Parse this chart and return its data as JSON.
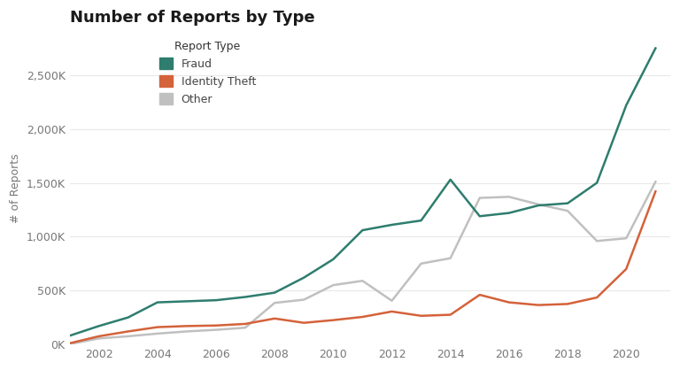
{
  "title": "Number of Reports by Type",
  "ylabel": "# of Reports",
  "years": [
    2001,
    2002,
    2003,
    2004,
    2005,
    2006,
    2007,
    2008,
    2009,
    2010,
    2011,
    2012,
    2013,
    2014,
    2015,
    2016,
    2017,
    2018,
    2019,
    2020,
    2021
  ],
  "fraud": [
    80000,
    170000,
    250000,
    390000,
    400000,
    410000,
    440000,
    480000,
    620000,
    790000,
    1060000,
    1110000,
    1150000,
    1530000,
    1190000,
    1220000,
    1290000,
    1310000,
    1500000,
    2220000,
    2750000
  ],
  "identity_theft": [
    10000,
    75000,
    120000,
    160000,
    170000,
    175000,
    190000,
    240000,
    200000,
    225000,
    255000,
    305000,
    265000,
    275000,
    460000,
    390000,
    365000,
    375000,
    435000,
    700000,
    1420000
  ],
  "other": [
    2000,
    55000,
    75000,
    100000,
    120000,
    135000,
    155000,
    385000,
    415000,
    550000,
    590000,
    405000,
    750000,
    800000,
    1360000,
    1370000,
    1300000,
    1240000,
    960000,
    985000,
    1510000
  ],
  "fraud_color": "#2e7d6e",
  "identity_theft_color": "#d4623a",
  "other_color": "#c0c0c0",
  "background_color": "#ffffff",
  "grid_color": "#e8e8e8",
  "title_fontsize": 13,
  "legend_title": "Report Type",
  "ylim": [
    0,
    2900000
  ],
  "yticks": [
    0,
    500000,
    1000000,
    1500000,
    2000000,
    2500000
  ],
  "ytick_labels": [
    "0K",
    "500K",
    "1,000K",
    "1,500K",
    "2,000K",
    "2,500K"
  ],
  "xticks": [
    2002,
    2004,
    2006,
    2008,
    2010,
    2012,
    2014,
    2016,
    2018,
    2020
  ],
  "xlim_left": 2001,
  "xlim_right": 2021.5
}
